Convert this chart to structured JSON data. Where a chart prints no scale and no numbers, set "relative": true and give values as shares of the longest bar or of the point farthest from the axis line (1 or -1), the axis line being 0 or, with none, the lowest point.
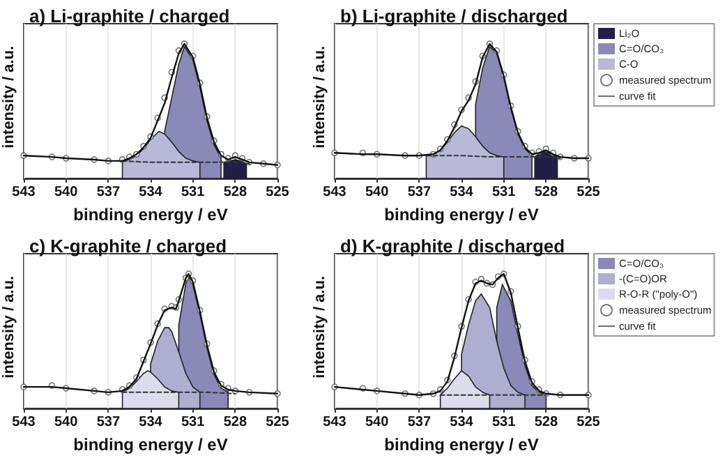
{
  "chart_data": [
    {
      "type": "line",
      "title": "a) Li-graphite / charged",
      "xlabel": "binding energy / eV",
      "ylabel": "intensity / a.u.",
      "relative": true,
      "xlim": [
        543,
        525
      ],
      "xticks": [
        543,
        540,
        537,
        534,
        531,
        528,
        525
      ],
      "grid": "x",
      "legend": false,
      "x": [
        543,
        541,
        540,
        538,
        537,
        536,
        535.5,
        535,
        534.5,
        534,
        533.5,
        533,
        532.5,
        532,
        531.6,
        531,
        530.5,
        530,
        529.5,
        529,
        528.5,
        528,
        527.5,
        527,
        526,
        525
      ],
      "series": [
        {
          "type": "area",
          "color": "#1f1f4a",
          "x": [
            528.8,
            528.4,
            528,
            527.6,
            527.2
          ],
          "values": [
            0.12,
            0.13,
            0.14,
            0.13,
            0.11
          ]
        },
        {
          "type": "area",
          "color": "#8a8ab8",
          "x": [
            533,
            532.5,
            532,
            531.6,
            531,
            530.5,
            530,
            529.5,
            529
          ],
          "values": [
            0.35,
            0.6,
            0.85,
            0.98,
            0.88,
            0.68,
            0.43,
            0.25,
            0.15
          ]
        },
        {
          "type": "area",
          "color": "#b8b8d8",
          "x": [
            536,
            535.5,
            535,
            534.5,
            534,
            533.4,
            533,
            532.5,
            532,
            531.5,
            531,
            530.5
          ],
          "values": [
            0.13,
            0.14,
            0.17,
            0.22,
            0.29,
            0.35,
            0.33,
            0.27,
            0.2,
            0.15,
            0.13,
            0.12
          ]
        },
        {
          "color": "#333333",
          "line_style": "dashed",
          "marker": "none",
          "x": [
            536,
            534,
            532,
            530,
            528,
            527
          ],
          "values": [
            0.13,
            0.12,
            0.12,
            0.12,
            0.12,
            0.11
          ]
        },
        {
          "type": "scatter",
          "color": "#555555",
          "marker": "circle",
          "values": [
            0.17,
            0.16,
            0.15,
            0.14,
            0.13,
            0.14,
            0.16,
            0.18,
            0.24,
            0.31,
            0.45,
            0.6,
            0.79,
            0.95,
            1.0,
            0.91,
            0.71,
            0.46,
            0.28,
            0.18,
            0.15,
            0.17,
            0.15,
            0.12,
            0.11,
            0.1
          ]
        },
        {
          "color": "#111111",
          "marker": "none",
          "line_style": "solid",
          "values": [
            0.17,
            0.16,
            0.15,
            0.14,
            0.13,
            0.13,
            0.15,
            0.18,
            0.23,
            0.3,
            0.43,
            0.56,
            0.75,
            0.93,
            1.0,
            0.9,
            0.7,
            0.45,
            0.27,
            0.17,
            0.14,
            0.16,
            0.14,
            0.12,
            0.11,
            0.1
          ]
        }
      ]
    },
    {
      "type": "line",
      "title": "b) Li-graphite / discharged",
      "xlabel": "binding energy / eV",
      "ylabel": "intensity / a.u.",
      "relative": true,
      "xlim": [
        543,
        525
      ],
      "xticks": [
        543,
        540,
        537,
        534,
        531,
        528,
        525
      ],
      "grid": "x",
      "legend": "right",
      "x": [
        543,
        541,
        540,
        538,
        537,
        536,
        535.5,
        535,
        534.5,
        534,
        533.5,
        533,
        532.5,
        532,
        531.5,
        531,
        530.5,
        530,
        529.5,
        529,
        528.5,
        528,
        527.5,
        527,
        526,
        525
      ],
      "series": [
        {
          "type": "area",
          "name": "Li₂O",
          "color": "#1f1f4a",
          "x": [
            528.8,
            528.4,
            528,
            527.6,
            527.2
          ],
          "values": [
            0.16,
            0.19,
            0.21,
            0.18,
            0.16
          ]
        },
        {
          "type": "area",
          "name": "C=O/CO₃",
          "color": "#8a8ab8",
          "x": [
            533,
            532.5,
            532,
            531.5,
            531,
            530.5,
            530,
            529.5,
            529
          ],
          "values": [
            0.55,
            0.82,
            0.98,
            0.93,
            0.75,
            0.52,
            0.33,
            0.22,
            0.17
          ]
        },
        {
          "type": "area",
          "name": "C-O",
          "color": "#b8b8d8",
          "x": [
            536.5,
            536,
            535.5,
            535,
            534.5,
            534,
            533.5,
            533,
            532.5,
            532,
            531.5,
            531
          ],
          "values": [
            0.17,
            0.18,
            0.21,
            0.27,
            0.34,
            0.39,
            0.37,
            0.31,
            0.24,
            0.19,
            0.17,
            0.16
          ]
        },
        {
          "color": "#333333",
          "line_style": "dashed",
          "marker": "none",
          "x": [
            536.5,
            534,
            532,
            530,
            528,
            527
          ],
          "values": [
            0.17,
            0.17,
            0.16,
            0.16,
            0.16,
            0.15
          ]
        },
        {
          "type": "scatter",
          "name": "measured spectrum",
          "color": "#555555",
          "marker": "circle",
          "values": [
            0.19,
            0.19,
            0.18,
            0.17,
            0.17,
            0.18,
            0.22,
            0.29,
            0.4,
            0.51,
            0.6,
            0.72,
            0.91,
            1.0,
            0.95,
            0.77,
            0.54,
            0.35,
            0.24,
            0.19,
            0.2,
            0.22,
            0.19,
            0.16,
            0.15,
            0.15
          ]
        },
        {
          "name": "curve fit",
          "color": "#111111",
          "marker": "none",
          "line_style": "solid",
          "values": [
            0.19,
            0.18,
            0.18,
            0.17,
            0.17,
            0.18,
            0.21,
            0.28,
            0.38,
            0.5,
            0.58,
            0.7,
            0.9,
            1.0,
            0.94,
            0.76,
            0.53,
            0.34,
            0.23,
            0.18,
            0.19,
            0.21,
            0.18,
            0.16,
            0.15,
            0.15
          ]
        }
      ]
    },
    {
      "type": "line",
      "title": "c) K-graphite / charged",
      "xlabel": "binding energy / eV",
      "ylabel": "intensity / a.u.",
      "relative": true,
      "xlim": [
        543,
        525
      ],
      "xticks": [
        543,
        540,
        537,
        534,
        531,
        528,
        525
      ],
      "grid": "x",
      "legend": false,
      "x": [
        543,
        541,
        540,
        538,
        537,
        536,
        535.5,
        535,
        534.5,
        534,
        533.5,
        533,
        532.5,
        532.2,
        532,
        531.5,
        531.3,
        531,
        530.5,
        530,
        529.5,
        529,
        528.5,
        528,
        527,
        525
      ],
      "series": [
        {
          "type": "area",
          "color": "#8a8ab8",
          "x": [
            532,
            531.5,
            531.3,
            531,
            530.5,
            530,
            529.5,
            529,
            528.5
          ],
          "values": [
            0.62,
            0.93,
            0.98,
            0.92,
            0.7,
            0.45,
            0.25,
            0.15,
            0.12
          ]
        },
        {
          "type": "area",
          "color": "#aeaed0",
          "x": [
            534,
            533.5,
            533,
            532.7,
            532.5,
            532,
            531.5,
            531,
            530.5
          ],
          "values": [
            0.33,
            0.5,
            0.6,
            0.6,
            0.57,
            0.42,
            0.26,
            0.16,
            0.12
          ]
        },
        {
          "type": "area",
          "color": "#dcdcec",
          "x": [
            536,
            535.5,
            535,
            534.5,
            534.2,
            534,
            533.5,
            533,
            532.5,
            532
          ],
          "values": [
            0.12,
            0.15,
            0.2,
            0.26,
            0.28,
            0.27,
            0.22,
            0.16,
            0.13,
            0.12
          ]
        },
        {
          "color": "#333333",
          "line_style": "dashed",
          "marker": "none",
          "x": [
            536,
            534,
            532,
            530,
            528
          ],
          "values": [
            0.12,
            0.12,
            0.12,
            0.12,
            0.11
          ]
        },
        {
          "type": "scatter",
          "color": "#555555",
          "marker": "circle",
          "values": [
            0.16,
            0.17,
            0.15,
            0.13,
            0.12,
            0.14,
            0.17,
            0.23,
            0.36,
            0.49,
            0.63,
            0.74,
            0.76,
            0.75,
            0.81,
            0.97,
            1.0,
            0.95,
            0.73,
            0.48,
            0.28,
            0.18,
            0.15,
            0.13,
            0.12,
            0.11
          ]
        },
        {
          "color": "#111111",
          "marker": "none",
          "line_style": "solid",
          "values": [
            0.16,
            0.16,
            0.15,
            0.13,
            0.12,
            0.13,
            0.16,
            0.22,
            0.35,
            0.48,
            0.62,
            0.73,
            0.75,
            0.74,
            0.8,
            0.97,
            1.0,
            0.94,
            0.72,
            0.47,
            0.27,
            0.17,
            0.14,
            0.13,
            0.12,
            0.11
          ]
        }
      ]
    },
    {
      "type": "line",
      "title": "d) K-graphite / discharged",
      "xlabel": "binding energy / eV",
      "ylabel": "intensity / a.u.",
      "relative": true,
      "xlim": [
        543,
        525
      ],
      "xticks": [
        543,
        540,
        537,
        534,
        531,
        528,
        525
      ],
      "grid": "x",
      "legend": "right",
      "x": [
        543,
        541,
        540,
        538,
        537,
        536,
        535.5,
        535,
        534.5,
        534,
        533.5,
        533,
        532.6,
        532.2,
        531.8,
        531.4,
        531,
        530.5,
        530,
        529.5,
        529,
        528.5,
        528,
        527,
        525
      ],
      "series": [
        {
          "type": "area",
          "name": "C=O/CO₃",
          "color": "#8a8ab8",
          "x": [
            531.5,
            531.1,
            530.5,
            530,
            529.5,
            529,
            528.5,
            528
          ],
          "values": [
            0.75,
            0.92,
            0.8,
            0.55,
            0.32,
            0.17,
            0.12,
            0.1
          ]
        },
        {
          "type": "area",
          "name": "-(C=O)OR",
          "color": "#aeaed0",
          "x": [
            534,
            533.5,
            533,
            532.6,
            532,
            531.5,
            531,
            530.5,
            530,
            529.5
          ],
          "values": [
            0.4,
            0.62,
            0.8,
            0.85,
            0.75,
            0.5,
            0.3,
            0.17,
            0.12,
            0.1
          ]
        },
        {
          "type": "area",
          "name": "R-O-R (\"poly-O\")",
          "color": "#dcdcec",
          "x": [
            535.5,
            535,
            534.5,
            534,
            533.5,
            533,
            532.5,
            532
          ],
          "values": [
            0.1,
            0.15,
            0.22,
            0.28,
            0.24,
            0.16,
            0.12,
            0.1
          ]
        },
        {
          "color": "#333333",
          "line_style": "dashed",
          "marker": "none",
          "x": [
            535.5,
            533,
            531,
            529,
            528
          ],
          "values": [
            0.1,
            0.1,
            0.1,
            0.1,
            0.1
          ]
        },
        {
          "type": "scatter",
          "name": "measured spectrum",
          "color": "#555555",
          "marker": "circle",
          "values": [
            0.16,
            0.15,
            0.13,
            0.11,
            0.1,
            0.11,
            0.14,
            0.21,
            0.39,
            0.61,
            0.81,
            0.94,
            0.96,
            0.93,
            0.92,
            0.98,
            1.0,
            0.87,
            0.61,
            0.36,
            0.2,
            0.14,
            0.11,
            0.1,
            0.1
          ]
        },
        {
          "name": "curve fit",
          "color": "#111111",
          "marker": "none",
          "line_style": "solid",
          "values": [
            0.16,
            0.14,
            0.13,
            0.11,
            0.1,
            0.11,
            0.13,
            0.2,
            0.38,
            0.6,
            0.8,
            0.93,
            0.95,
            0.93,
            0.92,
            0.97,
            1.0,
            0.86,
            0.6,
            0.35,
            0.19,
            0.13,
            0.11,
            0.1,
            0.1
          ]
        }
      ]
    }
  ]
}
